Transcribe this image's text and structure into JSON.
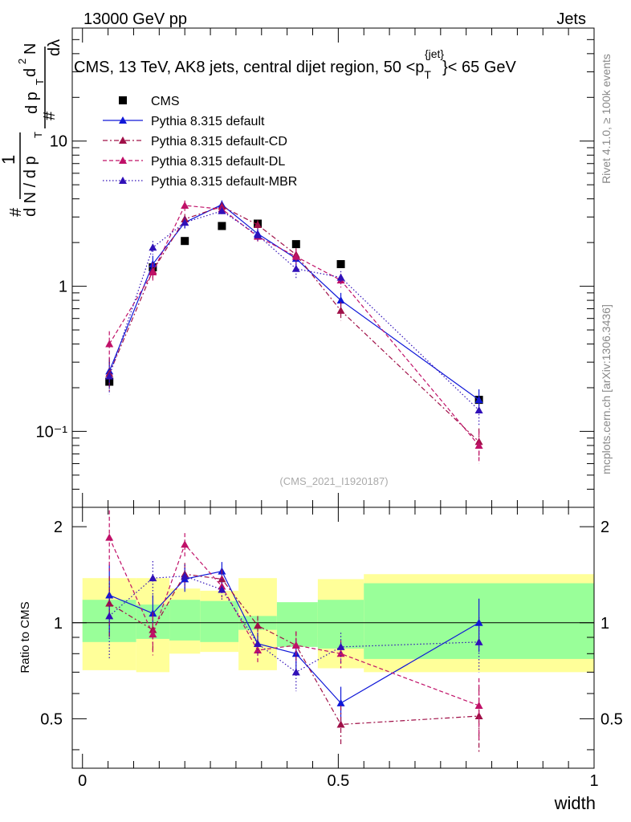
{
  "header": {
    "left": "13000 GeV pp",
    "right": "Jets"
  },
  "side_labels": {
    "rivet": "Rivet 4.1.0, ≥ 100k events",
    "mcplots": "mcplots.cern.ch [arXiv:1306.3436]"
  },
  "chart_data": [
    {
      "type": "line",
      "panel": "main",
      "title_parts": [
        "CMS, 13 TeV, AK8 jets, central dijet region, 50 <p",
        "T",
        "{jet}",
        "}< 65 GeV"
      ],
      "watermark": "(CMS_2021_I1920187)",
      "ylabel_parts": [
        "#",
        "1",
        "d N / d p",
        "T",
        "#",
        "d p",
        "T",
        "d",
        "2",
        "N",
        "dλ"
      ],
      "xlim": [
        -0.02,
        1.0
      ],
      "ylim": [
        0.03,
        60
      ],
      "yscale": "log",
      "ytick_labels": [
        "10",
        "1",
        "10⁻¹"
      ],
      "ytick_values": [
        10,
        1,
        0.1
      ],
      "x": [
        0.0525,
        0.1375,
        0.2,
        0.2725,
        0.3425,
        0.4175,
        0.505,
        0.775
      ],
      "series": [
        {
          "name": "CMS",
          "color": "#000000",
          "style": "data",
          "values": [
            0.22,
            1.35,
            2.05,
            2.6,
            2.7,
            1.95,
            1.42,
            0.165
          ],
          "errors": [
            0.015,
            0.05,
            0.06,
            0.06,
            0.06,
            0.05,
            0.04,
            0.01
          ]
        },
        {
          "name": "Pythia 8.315 default",
          "color": "#1018d8",
          "style": "solid",
          "values": [
            0.26,
            1.42,
            2.75,
            3.65,
            2.3,
            1.55,
            0.8,
            0.165
          ],
          "errors": [
            0.06,
            0.2,
            0.25,
            0.25,
            0.2,
            0.18,
            0.1,
            0.03
          ]
        },
        {
          "name": "Pythia 8.315 default-CD",
          "color": "#a01048",
          "style": "dashdot",
          "values": [
            0.25,
            1.28,
            2.9,
            3.55,
            2.65,
            1.65,
            0.68,
            0.085
          ],
          "errors": [
            0.06,
            0.18,
            0.25,
            0.25,
            0.2,
            0.18,
            0.1,
            0.02
          ]
        },
        {
          "name": "Pythia 8.315 default-DL",
          "color": "#c01068",
          "style": "dashed",
          "values": [
            0.4,
            1.25,
            3.6,
            3.4,
            2.2,
            1.6,
            1.1,
            0.08
          ],
          "errors": [
            0.09,
            0.18,
            0.3,
            0.25,
            0.2,
            0.18,
            0.12,
            0.02
          ]
        },
        {
          "name": "Pythia 8.315 default-MBR",
          "color": "#3010b8",
          "style": "dotted",
          "values": [
            0.24,
            1.85,
            2.75,
            3.3,
            2.25,
            1.32,
            1.15,
            0.14
          ],
          "errors": [
            0.06,
            0.2,
            0.25,
            0.25,
            0.2,
            0.18,
            0.12,
            0.03
          ]
        }
      ]
    },
    {
      "type": "line",
      "panel": "ratio",
      "ylabel": "Ratio to CMS",
      "xlabel": "width",
      "xlim": [
        -0.02,
        1.0
      ],
      "ylim": [
        0.35,
        2.3
      ],
      "yscale": "log",
      "ytick_labels": [
        "2",
        "1",
        "0.5"
      ],
      "ytick_values": [
        2,
        1,
        0.5
      ],
      "xtick_labels": [
        "0",
        "0.5",
        "1"
      ],
      "xtick_values": [
        0,
        0.5,
        1
      ],
      "bin_edges": [
        0.0,
        0.105,
        0.17,
        0.23,
        0.305,
        0.38,
        0.46,
        0.55,
        1.0
      ],
      "band_inner": [
        [
          0.87,
          1.18
        ],
        [
          0.89,
          1.14
        ],
        [
          0.88,
          1.18
        ],
        [
          0.87,
          1.17
        ],
        [
          0.95,
          1.05
        ],
        [
          0.84,
          1.16
        ],
        [
          0.83,
          1.18
        ],
        [
          0.77,
          1.33
        ],
        [
          0.77,
          1.33
        ]
      ],
      "band_outer": [
        [
          0.71,
          1.38
        ],
        [
          0.7,
          1.38
        ],
        [
          0.8,
          1.28
        ],
        [
          0.81,
          1.26
        ],
        [
          0.71,
          1.38
        ],
        [
          0.9,
          1.1
        ],
        [
          0.72,
          1.37
        ],
        [
          0.7,
          1.42
        ],
        [
          0.41,
          1.63
        ]
      ],
      "x": [
        0.0525,
        0.1375,
        0.2,
        0.2725,
        0.3425,
        0.4175,
        0.505,
        0.775
      ],
      "series": [
        {
          "name": "Pythia 8.315 default",
          "color": "#1018d8",
          "style": "solid",
          "values": [
            1.22,
            1.07,
            1.37,
            1.45,
            0.86,
            0.8,
            0.56,
            1.0
          ],
          "errors": [
            0.3,
            0.15,
            0.12,
            0.1,
            0.07,
            0.09,
            0.07,
            0.19
          ]
        },
        {
          "name": "Pythia 8.315 default-CD",
          "color": "#a01048",
          "style": "dashdot",
          "values": [
            1.15,
            0.95,
            1.42,
            1.37,
            0.98,
            0.85,
            0.48,
            0.51
          ],
          "errors": [
            0.25,
            0.13,
            0.12,
            0.1,
            0.07,
            0.09,
            0.07,
            0.12
          ]
        },
        {
          "name": "Pythia 8.315 default-DL",
          "color": "#c01068",
          "style": "dashed",
          "values": [
            1.85,
            0.92,
            1.76,
            1.3,
            0.82,
            0.85,
            0.8,
            0.55
          ],
          "errors": [
            0.4,
            0.13,
            0.15,
            0.1,
            0.07,
            0.09,
            0.08,
            0.12
          ]
        },
        {
          "name": "Pythia 8.315 default-MBR",
          "color": "#3010b8",
          "style": "dotted",
          "values": [
            1.05,
            1.38,
            1.4,
            1.27,
            0.86,
            0.7,
            0.84,
            0.87
          ],
          "errors": [
            0.28,
            0.18,
            0.12,
            0.1,
            0.07,
            0.09,
            0.09,
            0.17
          ]
        }
      ]
    }
  ]
}
